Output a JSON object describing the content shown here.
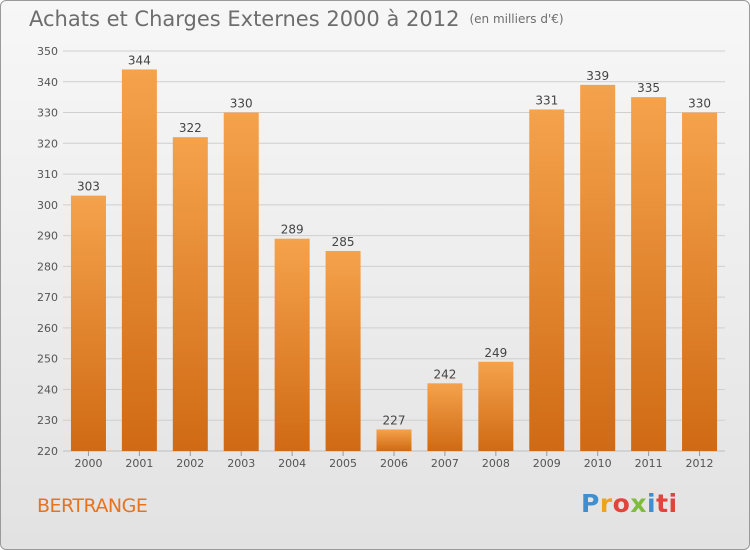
{
  "header": {
    "title": "Achats et Charges Externes 2000 à 2012",
    "unit": "(en milliers d'€)"
  },
  "footer": {
    "place": "BERTRANGE",
    "logo": [
      "P",
      "r",
      "o",
      "x",
      "i",
      "ti"
    ]
  },
  "colors": {
    "bar_top": "#f5a24c",
    "bar_bottom": "#d06a14",
    "grid": "#cfcfcf",
    "axis_text": "#555555",
    "title_text": "#6d6d6d",
    "place_text": "#e8731d"
  },
  "chart_data": {
    "type": "bar",
    "title": "Achats et Charges Externes 2000 à 2012",
    "subtitle": "(en milliers d'€)",
    "categories": [
      "2000",
      "2001",
      "2002",
      "2003",
      "2004",
      "2005",
      "2006",
      "2007",
      "2008",
      "2009",
      "2010",
      "2011",
      "2012"
    ],
    "values": [
      303,
      344,
      322,
      330,
      289,
      285,
      227,
      242,
      249,
      331,
      339,
      335,
      330
    ],
    "ylim": [
      220,
      350
    ],
    "yticks": [
      220,
      230,
      240,
      250,
      260,
      270,
      280,
      290,
      300,
      310,
      320,
      330,
      340,
      350
    ],
    "xlabel": "",
    "ylabel": "",
    "grid": true,
    "legend": "none"
  }
}
